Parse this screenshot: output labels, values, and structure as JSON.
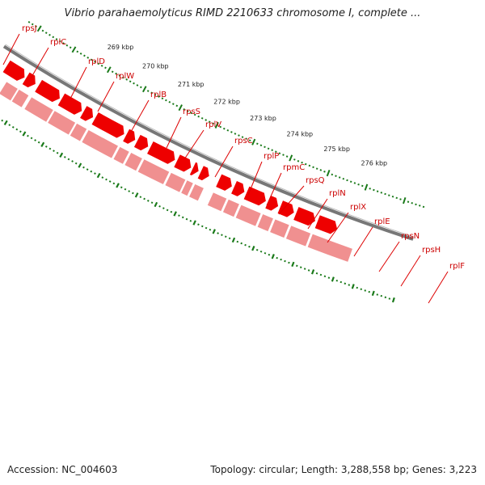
{
  "title": "Vibrio parahaemolyticus RIMD 2210633 chromosome I, complete ...",
  "footer": {
    "accession": "Accession: NC_004603",
    "stats": "Topology: circular; Length: 3,288,558 bp; Genes: 3,223"
  },
  "colors": {
    "gene_label": "#cc0000",
    "callout_line": "#dd0000",
    "gene_feature": "#ee0000",
    "cds_feature": "#f09090",
    "tick": "#1a7a1a",
    "backbone": "#777777"
  },
  "genes": [
    "rpsJ",
    "rplC",
    "rplD",
    "rplW",
    "rplB",
    "rpsS",
    "rplV",
    "rpsC",
    "rplP",
    "rpmC",
    "rpsQ",
    "rplN",
    "rplX",
    "rplE",
    "rpsN",
    "rpsH",
    "rplF"
  ],
  "scale_labels": [
    "269 kbp",
    "270 kbp",
    "271 kbp",
    "272 kbp",
    "273 kbp",
    "274 kbp",
    "275 kbp",
    "276 kbp"
  ]
}
